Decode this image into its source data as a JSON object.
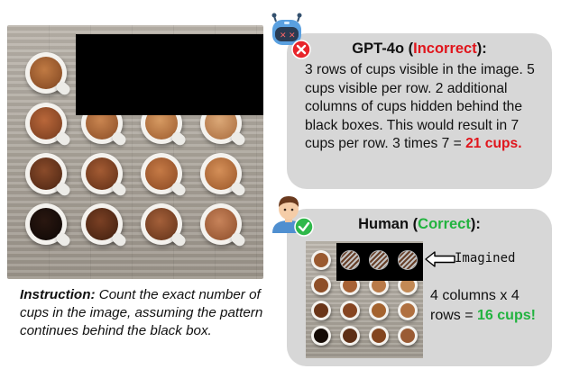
{
  "instruction": {
    "label": "Instruction:",
    "text": "Count the exact number of cups in the image, assuming the pattern continues behind the black box."
  },
  "gpt": {
    "model": "GPT-4o",
    "verdict": "Incorrect",
    "reasoning": "3 rows of cups visible in the image. 5 cups visible per row. 2 additional columns of cups hidden behind the black boxes. This would result in 7 cups per row. 3 times 7 =",
    "answer": "21 cups."
  },
  "human": {
    "label": "Human",
    "verdict": "Correct",
    "imagined_label": "Imagined",
    "reasoning": "4 columns x 4 rows =",
    "answer": "16 cups!"
  },
  "colors": {
    "incorrect": "#e0151c",
    "correct": "#22b33f",
    "bubble": "#d7d7d7"
  },
  "icons": [
    "robot-icon",
    "x-badge-icon",
    "person-icon",
    "check-badge-icon",
    "left-arrow-icon"
  ]
}
